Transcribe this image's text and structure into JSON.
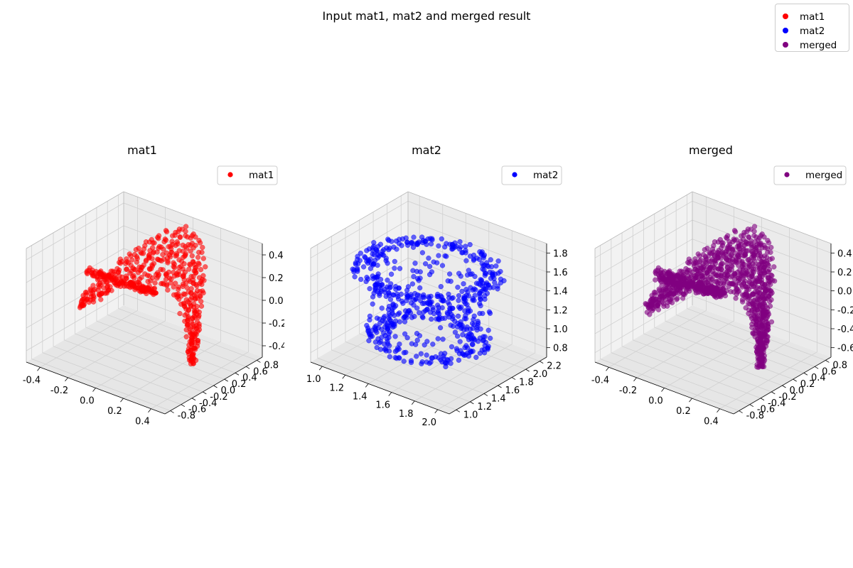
{
  "figure": {
    "suptitle": "Input mat1, mat2 and merged result",
    "legend": [
      {
        "label": "mat1",
        "color": "#ff0000"
      },
      {
        "label": "mat2",
        "color": "#0000ff"
      },
      {
        "label": "merged",
        "color": "#800080"
      }
    ]
  },
  "chart_data": [
    {
      "type": "scatter",
      "title": "mat1",
      "legend": "mat1",
      "legend_placement": "top-right",
      "color": "#ff0000",
      "grid": true,
      "xlim": [
        -0.48,
        0.48
      ],
      "ylim": [
        -0.85,
        0.85
      ],
      "zlim": [
        -0.5,
        0.5
      ],
      "xticks": [
        "-0.4",
        "-0.2",
        "0.0",
        "0.2",
        "0.4"
      ],
      "yticks": [
        "-0.8",
        "-0.6",
        "-0.4",
        "-0.2",
        "0.0",
        "0.2",
        "0.4",
        "0.6",
        "0.8"
      ],
      "zticks": [
        "-0.4",
        "-0.2",
        "0.0",
        "0.2",
        "0.4"
      ]
    },
    {
      "type": "scatter",
      "title": "mat2",
      "legend": "mat2",
      "legend_placement": "top-right",
      "color": "#0000ff",
      "grid": true,
      "xlim": [
        0.9,
        2.1
      ],
      "ylim": [
        0.9,
        2.3
      ],
      "zlim": [
        0.65,
        1.9
      ],
      "xticks": [
        "1.0",
        "1.2",
        "1.4",
        "1.6",
        "1.8",
        "2.0"
      ],
      "yticks": [
        "1.0",
        "1.2",
        "1.4",
        "1.6",
        "1.8",
        "2.0",
        "2.2"
      ],
      "zticks": [
        "0.8",
        "1.0",
        "1.2",
        "1.4",
        "1.6",
        "1.8"
      ]
    },
    {
      "type": "scatter",
      "title": "merged",
      "legend": "merged",
      "legend_placement": "top-right",
      "color": "#800080",
      "grid": true,
      "xlim": [
        -0.48,
        0.48
      ],
      "ylim": [
        -0.85,
        0.85
      ],
      "zlim": [
        -0.65,
        0.5
      ],
      "xticks": [
        "-0.4",
        "-0.2",
        "0.0",
        "0.2",
        "0.4"
      ],
      "yticks": [
        "-0.8",
        "-0.6",
        "-0.4",
        "-0.2",
        "0.0",
        "0.2",
        "0.4",
        "0.6",
        "0.8"
      ],
      "zticks": [
        "-0.6",
        "-0.4",
        "-0.2",
        "0.0",
        "0.2",
        "0.4"
      ]
    }
  ]
}
